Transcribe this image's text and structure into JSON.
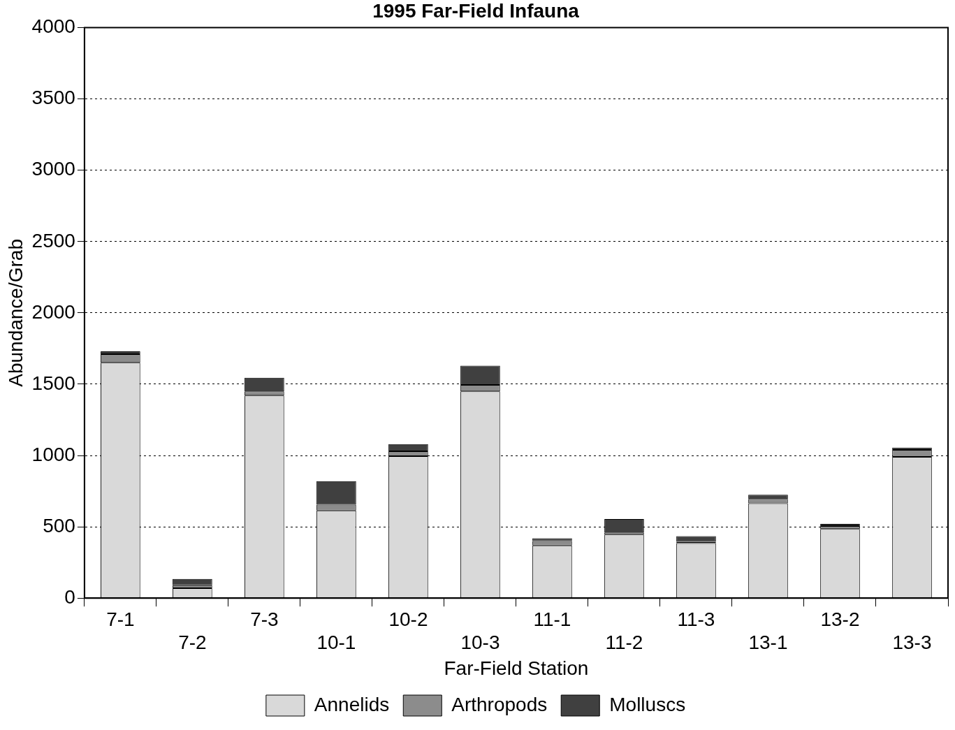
{
  "chart_data": {
    "type": "bar",
    "title": "1995 Far-Field Infauna",
    "xlabel": "Far-Field Station",
    "ylabel": "Abundance/Grab",
    "categories": [
      "7-1",
      "7-2",
      "7-3",
      "10-1",
      "10-2",
      "10-3",
      "11-1",
      "11-2",
      "11-3",
      "13-1",
      "13-2",
      "13-3"
    ],
    "stacked": true,
    "series": [
      {
        "name": "Annelids",
        "color": "#d9d9d9",
        "values": [
          1650,
          70,
          1420,
          615,
          995,
          1450,
          370,
          445,
          385,
          665,
          485,
          990
        ]
      },
      {
        "name": "Arthropods",
        "color": "#8c8c8c",
        "values": [
          60,
          20,
          30,
          40,
          35,
          45,
          30,
          15,
          10,
          30,
          20,
          50
        ]
      },
      {
        "name": "Molluscs",
        "color": "#404040",
        "values": [
          20,
          45,
          95,
          165,
          50,
          135,
          20,
          95,
          40,
          30,
          15,
          15
        ]
      }
    ],
    "ylim": [
      0,
      4000
    ],
    "yticks": [
      0,
      500,
      1000,
      1500,
      2000,
      2500,
      3000,
      3500,
      4000
    ],
    "grid": "y",
    "legend": "bottom"
  }
}
